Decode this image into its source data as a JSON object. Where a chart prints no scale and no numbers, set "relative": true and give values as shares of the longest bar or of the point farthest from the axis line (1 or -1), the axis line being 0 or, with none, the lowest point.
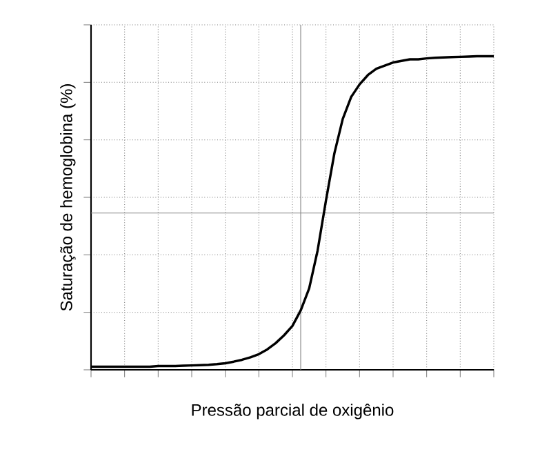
{
  "chart_data": {
    "type": "line",
    "relative": true,
    "xlabel": "Pressão parcial de oxigênio",
    "ylabel": "Saturação de hemoglobina (%)",
    "categories": [
      null,
      null,
      null,
      null,
      null,
      null,
      null,
      null,
      null,
      null,
      null,
      null,
      null,
      null,
      null,
      null,
      null,
      null,
      null,
      null,
      null,
      null,
      null,
      null,
      null,
      null,
      null,
      null,
      null,
      null,
      null,
      null,
      null,
      null,
      null,
      null,
      null,
      null,
      null,
      null,
      null,
      null,
      null,
      null,
      null,
      null,
      null,
      null,
      null
    ],
    "series": [
      {
        "color": "#000000",
        "values": [
          0.01,
          0.01,
          0.01,
          0.01,
          0.01,
          0.01,
          0.01,
          0.01,
          0.012,
          0.012,
          0.012,
          0.013,
          0.014,
          0.015,
          0.016,
          0.018,
          0.021,
          0.026,
          0.032,
          0.04,
          0.05,
          0.065,
          0.085,
          0.11,
          0.14,
          0.19,
          0.26,
          0.38,
          0.54,
          0.69,
          0.8,
          0.87,
          0.91,
          0.94,
          0.96,
          0.97,
          0.98,
          0.985,
          0.99,
          0.99,
          0.993,
          0.995,
          0.996,
          0.997,
          0.998,
          0.999,
          1,
          1,
          1
        ]
      }
    ],
    "ref_lines": [
      {
        "axis": "y",
        "value": 0.5,
        "color": "#888888"
      }
    ],
    "grid": true,
    "marker": "none",
    "line_style": "solid"
  }
}
